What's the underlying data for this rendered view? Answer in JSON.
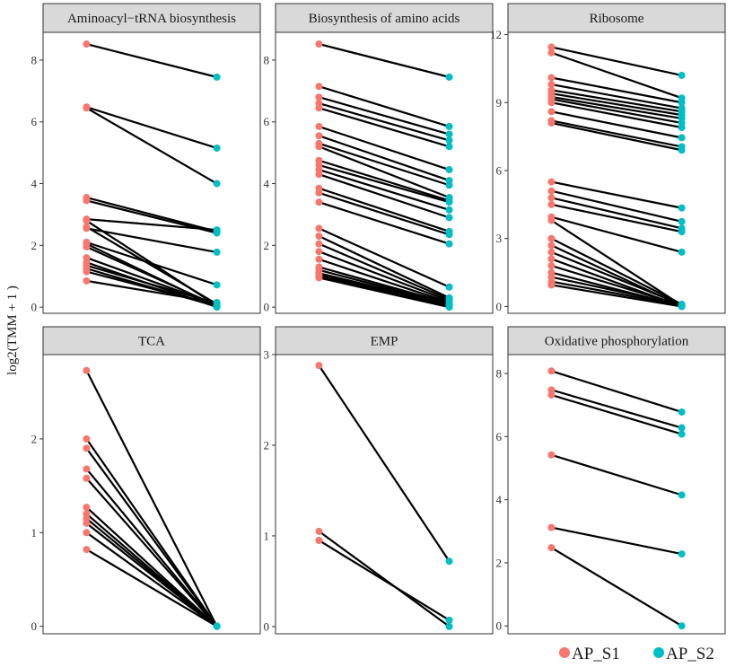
{
  "ylabel": "log2(TMM + 1 )",
  "colors": {
    "s1": "#F8766D",
    "s2": "#00BFC4",
    "line": "#000000",
    "strip": "#D9D9D9",
    "border": "#333333"
  },
  "legend": {
    "items": [
      {
        "label": "AP_S1",
        "color": "#F8766D"
      },
      {
        "label": "AP_S2",
        "color": "#00BFC4"
      }
    ]
  },
  "chart_data": [
    {
      "type": "line",
      "title": "Aminoacyl−tRNA biosynthesis",
      "ylim": [
        -0.2,
        8.9
      ],
      "yticks": [
        0,
        2,
        4,
        6,
        8
      ],
      "ytick_labels": [
        "0",
        "2",
        "4",
        "6",
        "8"
      ],
      "pairs": [
        [
          8.52,
          7.45
        ],
        [
          6.48,
          5.15
        ],
        [
          6.45,
          4.0
        ],
        [
          3.55,
          2.45
        ],
        [
          3.45,
          2.4
        ],
        [
          2.85,
          2.5
        ],
        [
          2.8,
          0.05
        ],
        [
          2.6,
          0.1
        ],
        [
          2.55,
          1.78
        ],
        [
          2.1,
          0.72
        ],
        [
          2.05,
          0.02
        ],
        [
          1.95,
          0.05
        ],
        [
          1.6,
          0.08
        ],
        [
          1.45,
          0.0
        ],
        [
          1.35,
          0.12
        ],
        [
          1.25,
          0.02
        ],
        [
          1.15,
          0.05
        ],
        [
          0.85,
          0.15
        ]
      ]
    },
    {
      "type": "line",
      "title": "Biosynthesis of amino acids",
      "ylim": [
        -0.2,
        8.9
      ],
      "yticks": [
        0,
        2,
        4,
        6,
        8
      ],
      "ytick_labels": [
        "0",
        "2",
        "4",
        "6",
        "8"
      ],
      "pairs": [
        [
          8.52,
          7.45
        ],
        [
          7.15,
          5.85
        ],
        [
          6.8,
          5.6
        ],
        [
          6.6,
          5.4
        ],
        [
          6.45,
          5.2
        ],
        [
          5.85,
          4.45
        ],
        [
          5.55,
          4.1
        ],
        [
          5.3,
          3.95
        ],
        [
          5.2,
          3.55
        ],
        [
          4.75,
          3.45
        ],
        [
          4.6,
          3.4
        ],
        [
          4.45,
          3.15
        ],
        [
          4.3,
          2.9
        ],
        [
          3.85,
          2.45
        ],
        [
          3.7,
          2.35
        ],
        [
          3.4,
          2.05
        ],
        [
          2.55,
          0.65
        ],
        [
          2.3,
          0.3
        ],
        [
          2.05,
          0.25
        ],
        [
          1.8,
          0.2
        ],
        [
          1.55,
          0.15
        ],
        [
          1.3,
          0.12
        ],
        [
          1.2,
          0.1
        ],
        [
          1.1,
          0.08
        ],
        [
          1.05,
          0.05
        ],
        [
          1.0,
          0.03
        ],
        [
          0.95,
          0.0
        ]
      ]
    },
    {
      "type": "line",
      "title": "Ribosome",
      "ylim": [
        -0.3,
        12.1
      ],
      "yticks": [
        0,
        3,
        6,
        9,
        12
      ],
      "ytick_labels": [
        "0",
        "3",
        "6",
        "9",
        "12"
      ],
      "pairs": [
        [
          11.45,
          10.2
        ],
        [
          11.2,
          9.2
        ],
        [
          10.1,
          9.0
        ],
        [
          9.8,
          8.75
        ],
        [
          9.55,
          8.6
        ],
        [
          9.4,
          8.45
        ],
        [
          9.25,
          8.3
        ],
        [
          9.15,
          8.1
        ],
        [
          9.0,
          7.9
        ],
        [
          8.6,
          7.45
        ],
        [
          8.2,
          7.05
        ],
        [
          8.1,
          6.9
        ],
        [
          5.5,
          4.35
        ],
        [
          5.1,
          3.75
        ],
        [
          4.8,
          3.45
        ],
        [
          4.5,
          3.3
        ],
        [
          3.95,
          2.4
        ],
        [
          3.8,
          0.05
        ],
        [
          3.0,
          0.1
        ],
        [
          2.7,
          0.03
        ],
        [
          2.4,
          0.08
        ],
        [
          2.1,
          0.0
        ],
        [
          1.8,
          0.05
        ],
        [
          1.5,
          0.02
        ],
        [
          1.3,
          0.08
        ],
        [
          1.1,
          0.05
        ],
        [
          0.95,
          0.0
        ]
      ]
    },
    {
      "type": "line",
      "title": "TCA",
      "ylim": [
        -0.08,
        2.9
      ],
      "yticks": [
        0,
        1,
        2
      ],
      "ytick_labels": [
        "0",
        "1",
        "2"
      ],
      "pairs": [
        [
          2.73,
          0.0
        ],
        [
          2.0,
          0.0
        ],
        [
          1.9,
          0.0
        ],
        [
          1.68,
          0.0
        ],
        [
          1.58,
          0.0
        ],
        [
          1.27,
          0.0
        ],
        [
          1.2,
          0.0
        ],
        [
          1.15,
          0.0
        ],
        [
          1.1,
          0.0
        ],
        [
          1.0,
          0.0
        ],
        [
          0.82,
          0.0
        ]
      ]
    },
    {
      "type": "line",
      "title": "EMP",
      "ylim": [
        -0.08,
        3.0
      ],
      "yticks": [
        0,
        1,
        2,
        3
      ],
      "ytick_labels": [
        "0",
        "1",
        "2",
        "3"
      ],
      "pairs": [
        [
          2.88,
          0.72
        ],
        [
          1.05,
          0.0
        ],
        [
          0.95,
          0.07
        ]
      ]
    },
    {
      "type": "line",
      "title": "Oxidative phosphorylation",
      "ylim": [
        -0.25,
        8.6
      ],
      "yticks": [
        0,
        2,
        4,
        6,
        8
      ],
      "ytick_labels": [
        "0",
        "2",
        "4",
        "6",
        "8"
      ],
      "pairs": [
        [
          8.08,
          6.78
        ],
        [
          7.48,
          6.28
        ],
        [
          7.32,
          6.08
        ],
        [
          5.42,
          4.15
        ],
        [
          3.12,
          2.28
        ],
        [
          2.48,
          0.0
        ]
      ]
    }
  ]
}
